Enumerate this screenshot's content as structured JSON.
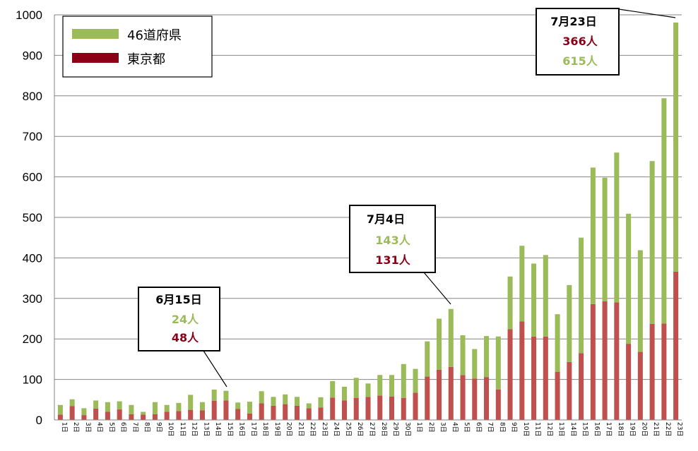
{
  "chart_data": {
    "type": "bar",
    "stacked": true,
    "ylim": [
      0,
      1000
    ],
    "yticks": [
      0,
      100,
      200,
      300,
      400,
      500,
      600,
      700,
      800,
      900,
      1000
    ],
    "grid": true,
    "legend_position": "top-left",
    "colors": {
      "prefectures": "#9bbb59",
      "tokyo": "#c0504d"
    },
    "categories": [
      "1日",
      "2日",
      "3日",
      "4日",
      "5日",
      "6日",
      "7日",
      "8日",
      "9日",
      "10日",
      "11日",
      "12日",
      "13日",
      "14日",
      "15日",
      "16日",
      "17日",
      "18日",
      "19日",
      "20日",
      "21日",
      "22日",
      "23日",
      "24日",
      "25日",
      "26日",
      "27日",
      "28日",
      "29日",
      "30日",
      "1日",
      "2日",
      "3日",
      "4日",
      "5日",
      "6日",
      "7日",
      "8日",
      "9日",
      "10日",
      "11日",
      "12日",
      "13日",
      "14日",
      "15日",
      "16日",
      "17日",
      "18日",
      "19日",
      "20日",
      "21日",
      "22日",
      "23日"
    ],
    "series": [
      {
        "name": "東京都",
        "values": [
          13,
          34,
          12,
          28,
          20,
          26,
          14,
          13,
          14,
          20,
          22,
          25,
          24,
          47,
          48,
          27,
          16,
          41,
          35,
          39,
          35,
          29,
          31,
          55,
          48,
          54,
          57,
          60,
          58,
          54,
          67,
          107,
          124,
          131,
          111,
          102,
          106,
          75,
          224,
          243,
          206,
          206,
          119,
          143,
          165,
          286,
          293,
          290,
          188,
          168,
          237,
          238,
          366
        ]
      },
      {
        "name": "46道府県",
        "values": [
          24,
          17,
          17,
          20,
          24,
          20,
          23,
          7,
          30,
          17,
          20,
          37,
          20,
          28,
          24,
          16,
          29,
          30,
          22,
          24,
          22,
          12,
          25,
          41,
          34,
          50,
          33,
          51,
          53,
          84,
          59,
          87,
          126,
          143,
          98,
          73,
          101,
          131,
          130,
          187,
          180,
          201,
          142,
          190,
          285,
          337,
          305,
          370,
          321,
          251,
          402,
          556,
          615
        ]
      }
    ],
    "annotations": [
      {
        "date": "6月15日",
        "lines": [
          {
            "text": "24人",
            "series": "46道府県"
          },
          {
            "text": "48人",
            "series": "東京都"
          }
        ]
      },
      {
        "date": "7月4日",
        "lines": [
          {
            "text": "143人",
            "series": "46道府県"
          },
          {
            "text": "131人",
            "series": "東京都"
          }
        ]
      },
      {
        "date": "7月23日",
        "lines": [
          {
            "text": "366人",
            "series": "東京都"
          },
          {
            "text": "615人",
            "series": "46道府県"
          }
        ]
      }
    ]
  }
}
